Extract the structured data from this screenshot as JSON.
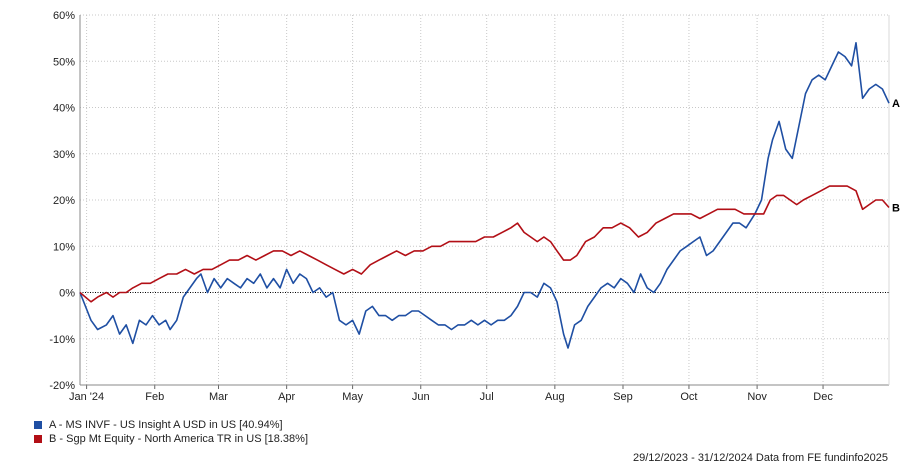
{
  "chart_data": {
    "type": "line",
    "y_ticks": [
      "60%",
      "50%",
      "40%",
      "30%",
      "20%",
      "10%",
      "0%",
      "-10%",
      "-20%"
    ],
    "y_tick_values": [
      60,
      50,
      40,
      30,
      20,
      10,
      0,
      -10,
      -20
    ],
    "ylim": [
      -20,
      60
    ],
    "x_ticks": [
      "Jan '24",
      "Feb",
      "Mar",
      "Apr",
      "May",
      "Jun",
      "Jul",
      "Aug",
      "Sep",
      "Oct",
      "Nov",
      "Dec"
    ],
    "x_tick_dates": [
      "2024-01-01",
      "2024-02-01",
      "2024-03-01",
      "2024-04-01",
      "2024-05-01",
      "2024-06-01",
      "2024-07-01",
      "2024-08-01",
      "2024-09-01",
      "2024-10-01",
      "2024-11-01",
      "2024-12-01"
    ],
    "xlim": [
      "2023-12-29",
      "2024-12-31"
    ],
    "grid": true,
    "legend_position": "bottom-left",
    "series": [
      {
        "name": "A - MS INVF - US Insight A USD in US [40.94%]",
        "end_label": "A",
        "color": "#1f4fa3",
        "points": [
          [
            "2023-12-29",
            0
          ],
          [
            "2024-01-03",
            -6
          ],
          [
            "2024-01-06",
            -8
          ],
          [
            "2024-01-10",
            -7
          ],
          [
            "2024-01-13",
            -5
          ],
          [
            "2024-01-16",
            -9
          ],
          [
            "2024-01-19",
            -7
          ],
          [
            "2024-01-22",
            -11
          ],
          [
            "2024-01-25",
            -6
          ],
          [
            "2024-01-28",
            -7
          ],
          [
            "2024-01-31",
            -5
          ],
          [
            "2024-02-03",
            -7
          ],
          [
            "2024-02-06",
            -6
          ],
          [
            "2024-02-08",
            -8
          ],
          [
            "2024-02-11",
            -6
          ],
          [
            "2024-02-14",
            -1
          ],
          [
            "2024-02-17",
            1
          ],
          [
            "2024-02-20",
            3
          ],
          [
            "2024-02-22",
            4
          ],
          [
            "2024-02-25",
            0
          ],
          [
            "2024-02-28",
            3
          ],
          [
            "2024-03-02",
            1
          ],
          [
            "2024-03-05",
            3
          ],
          [
            "2024-03-08",
            2
          ],
          [
            "2024-03-11",
            1
          ],
          [
            "2024-03-14",
            3
          ],
          [
            "2024-03-17",
            2
          ],
          [
            "2024-03-20",
            4
          ],
          [
            "2024-03-23",
            1
          ],
          [
            "2024-03-26",
            3
          ],
          [
            "2024-03-29",
            1
          ],
          [
            "2024-04-01",
            5
          ],
          [
            "2024-04-04",
            2
          ],
          [
            "2024-04-07",
            4
          ],
          [
            "2024-04-10",
            3
          ],
          [
            "2024-04-13",
            0
          ],
          [
            "2024-04-16",
            1
          ],
          [
            "2024-04-19",
            -1
          ],
          [
            "2024-04-22",
            0
          ],
          [
            "2024-04-25",
            -6
          ],
          [
            "2024-04-28",
            -7
          ],
          [
            "2024-05-01",
            -6
          ],
          [
            "2024-05-04",
            -9
          ],
          [
            "2024-05-07",
            -4
          ],
          [
            "2024-05-10",
            -3
          ],
          [
            "2024-05-13",
            -5
          ],
          [
            "2024-05-16",
            -5
          ],
          [
            "2024-05-19",
            -6
          ],
          [
            "2024-05-22",
            -5
          ],
          [
            "2024-05-25",
            -5
          ],
          [
            "2024-05-28",
            -4
          ],
          [
            "2024-05-31",
            -4
          ],
          [
            "2024-06-03",
            -5
          ],
          [
            "2024-06-06",
            -6
          ],
          [
            "2024-06-09",
            -7
          ],
          [
            "2024-06-12",
            -7
          ],
          [
            "2024-06-15",
            -8
          ],
          [
            "2024-06-18",
            -7
          ],
          [
            "2024-06-21",
            -7
          ],
          [
            "2024-06-24",
            -6
          ],
          [
            "2024-06-27",
            -7
          ],
          [
            "2024-06-30",
            -6
          ],
          [
            "2024-07-03",
            -7
          ],
          [
            "2024-07-06",
            -6
          ],
          [
            "2024-07-09",
            -6
          ],
          [
            "2024-07-12",
            -5
          ],
          [
            "2024-07-15",
            -3
          ],
          [
            "2024-07-18",
            0
          ],
          [
            "2024-07-21",
            0
          ],
          [
            "2024-07-24",
            -1
          ],
          [
            "2024-07-27",
            2
          ],
          [
            "2024-07-30",
            1
          ],
          [
            "2024-08-02",
            -2
          ],
          [
            "2024-08-05",
            -9
          ],
          [
            "2024-08-07",
            -12
          ],
          [
            "2024-08-10",
            -7
          ],
          [
            "2024-08-13",
            -6
          ],
          [
            "2024-08-16",
            -3
          ],
          [
            "2024-08-19",
            -1
          ],
          [
            "2024-08-22",
            1
          ],
          [
            "2024-08-25",
            2
          ],
          [
            "2024-08-28",
            1
          ],
          [
            "2024-08-31",
            3
          ],
          [
            "2024-09-03",
            2
          ],
          [
            "2024-09-06",
            0
          ],
          [
            "2024-09-09",
            4
          ],
          [
            "2024-09-12",
            1
          ],
          [
            "2024-09-15",
            0
          ],
          [
            "2024-09-18",
            2
          ],
          [
            "2024-09-21",
            5
          ],
          [
            "2024-09-24",
            7
          ],
          [
            "2024-09-27",
            9
          ],
          [
            "2024-09-30",
            10
          ],
          [
            "2024-10-03",
            11
          ],
          [
            "2024-10-06",
            12
          ],
          [
            "2024-10-09",
            8
          ],
          [
            "2024-10-12",
            9
          ],
          [
            "2024-10-15",
            11
          ],
          [
            "2024-10-18",
            13
          ],
          [
            "2024-10-21",
            15
          ],
          [
            "2024-10-24",
            15
          ],
          [
            "2024-10-27",
            14
          ],
          [
            "2024-10-31",
            17
          ],
          [
            "2024-11-03",
            20
          ],
          [
            "2024-11-06",
            29
          ],
          [
            "2024-11-08",
            33
          ],
          [
            "2024-11-11",
            37
          ],
          [
            "2024-11-14",
            31
          ],
          [
            "2024-11-17",
            29
          ],
          [
            "2024-11-20",
            36
          ],
          [
            "2024-11-23",
            43
          ],
          [
            "2024-11-26",
            46
          ],
          [
            "2024-11-29",
            47
          ],
          [
            "2024-12-02",
            46
          ],
          [
            "2024-12-05",
            49
          ],
          [
            "2024-12-08",
            52
          ],
          [
            "2024-12-11",
            51
          ],
          [
            "2024-12-14",
            49
          ],
          [
            "2024-12-16",
            54
          ],
          [
            "2024-12-19",
            42
          ],
          [
            "2024-12-22",
            44
          ],
          [
            "2024-12-25",
            45
          ],
          [
            "2024-12-28",
            44
          ],
          [
            "2024-12-31",
            40.94
          ]
        ]
      },
      {
        "name": "B - Sgp Mt Equity - North America TR in US [18.38%]",
        "end_label": "B",
        "color": "#b20f16",
        "points": [
          [
            "2023-12-29",
            0
          ],
          [
            "2024-01-03",
            -2
          ],
          [
            "2024-01-06",
            -1
          ],
          [
            "2024-01-10",
            0
          ],
          [
            "2024-01-13",
            -1
          ],
          [
            "2024-01-16",
            0
          ],
          [
            "2024-01-19",
            0
          ],
          [
            "2024-01-22",
            1
          ],
          [
            "2024-01-26",
            2
          ],
          [
            "2024-01-30",
            2
          ],
          [
            "2024-02-03",
            3
          ],
          [
            "2024-02-07",
            4
          ],
          [
            "2024-02-11",
            4
          ],
          [
            "2024-02-15",
            5
          ],
          [
            "2024-02-19",
            4
          ],
          [
            "2024-02-23",
            5
          ],
          [
            "2024-02-27",
            5
          ],
          [
            "2024-03-02",
            6
          ],
          [
            "2024-03-06",
            7
          ],
          [
            "2024-03-10",
            7
          ],
          [
            "2024-03-14",
            8
          ],
          [
            "2024-03-18",
            7
          ],
          [
            "2024-03-22",
            8
          ],
          [
            "2024-03-26",
            9
          ],
          [
            "2024-03-30",
            9
          ],
          [
            "2024-04-03",
            8
          ],
          [
            "2024-04-07",
            9
          ],
          [
            "2024-04-11",
            8
          ],
          [
            "2024-04-15",
            7
          ],
          [
            "2024-04-19",
            6
          ],
          [
            "2024-04-23",
            5
          ],
          [
            "2024-04-27",
            4
          ],
          [
            "2024-05-01",
            5
          ],
          [
            "2024-05-05",
            4
          ],
          [
            "2024-05-09",
            6
          ],
          [
            "2024-05-13",
            7
          ],
          [
            "2024-05-17",
            8
          ],
          [
            "2024-05-21",
            9
          ],
          [
            "2024-05-25",
            8
          ],
          [
            "2024-05-29",
            9
          ],
          [
            "2024-06-02",
            9
          ],
          [
            "2024-06-06",
            10
          ],
          [
            "2024-06-10",
            10
          ],
          [
            "2024-06-14",
            11
          ],
          [
            "2024-06-18",
            11
          ],
          [
            "2024-06-22",
            11
          ],
          [
            "2024-06-26",
            11
          ],
          [
            "2024-06-30",
            12
          ],
          [
            "2024-07-04",
            12
          ],
          [
            "2024-07-08",
            13
          ],
          [
            "2024-07-12",
            14
          ],
          [
            "2024-07-15",
            15
          ],
          [
            "2024-07-18",
            13
          ],
          [
            "2024-07-21",
            12
          ],
          [
            "2024-07-24",
            11
          ],
          [
            "2024-07-27",
            12
          ],
          [
            "2024-07-30",
            11
          ],
          [
            "2024-08-02",
            9
          ],
          [
            "2024-08-05",
            7
          ],
          [
            "2024-08-08",
            7
          ],
          [
            "2024-08-11",
            8
          ],
          [
            "2024-08-15",
            11
          ],
          [
            "2024-08-19",
            12
          ],
          [
            "2024-08-23",
            14
          ],
          [
            "2024-08-27",
            14
          ],
          [
            "2024-08-31",
            15
          ],
          [
            "2024-09-04",
            14
          ],
          [
            "2024-09-08",
            12
          ],
          [
            "2024-09-12",
            13
          ],
          [
            "2024-09-16",
            15
          ],
          [
            "2024-09-20",
            16
          ],
          [
            "2024-09-24",
            17
          ],
          [
            "2024-09-28",
            17
          ],
          [
            "2024-10-02",
            17
          ],
          [
            "2024-10-06",
            16
          ],
          [
            "2024-10-10",
            17
          ],
          [
            "2024-10-14",
            18
          ],
          [
            "2024-10-18",
            18
          ],
          [
            "2024-10-22",
            18
          ],
          [
            "2024-10-26",
            17
          ],
          [
            "2024-10-31",
            17
          ],
          [
            "2024-11-04",
            17
          ],
          [
            "2024-11-07",
            20
          ],
          [
            "2024-11-10",
            21
          ],
          [
            "2024-11-13",
            21
          ],
          [
            "2024-11-16",
            20
          ],
          [
            "2024-11-19",
            19
          ],
          [
            "2024-11-22",
            20
          ],
          [
            "2024-11-26",
            21
          ],
          [
            "2024-11-30",
            22
          ],
          [
            "2024-12-04",
            23
          ],
          [
            "2024-12-08",
            23
          ],
          [
            "2024-12-12",
            23
          ],
          [
            "2024-12-16",
            22
          ],
          [
            "2024-12-19",
            18
          ],
          [
            "2024-12-22",
            19
          ],
          [
            "2024-12-25",
            20
          ],
          [
            "2024-12-28",
            20
          ],
          [
            "2024-12-31",
            18.38
          ]
        ]
      }
    ]
  },
  "footer": {
    "text": "29/12/2023 - 31/12/2024 Data from FE fundinfo2025"
  }
}
